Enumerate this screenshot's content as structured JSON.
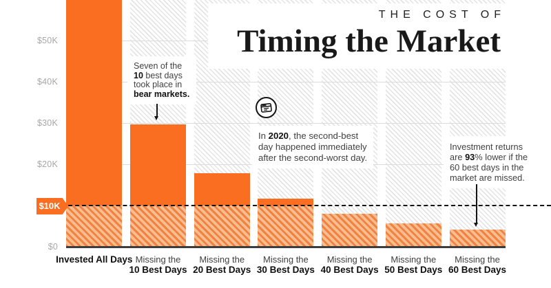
{
  "title": {
    "kicker": "THE COST OF",
    "main": "Timing the Market"
  },
  "chart_data": {
    "type": "bar",
    "title": "The Cost of Timing the Market",
    "categories": [
      [
        "Invested All Days"
      ],
      [
        "Missing the",
        "10 Best Days"
      ],
      [
        "Missing the",
        "20 Best Days"
      ],
      [
        "Missing the",
        "30 Best Days"
      ],
      [
        "Missing the",
        "40 Best Days"
      ],
      [
        "Missing the",
        "50 Best Days"
      ],
      [
        "Missing the",
        "60 Best Days"
      ]
    ],
    "values": [
      64800,
      29700,
      17800,
      11700,
      8000,
      5700,
      4200
    ],
    "y_ticks": [
      {
        "label": "$50K",
        "value": 50000
      },
      {
        "label": "$40K",
        "value": 40000
      },
      {
        "label": "$30K",
        "value": 30000
      },
      {
        "label": "$20K",
        "value": 20000
      },
      {
        "label": "$10K",
        "value": 10000
      },
      {
        "label": "$0",
        "value": 0
      }
    ],
    "reference_line": {
      "label": "$10K",
      "value": 10000,
      "style": "dashed"
    },
    "y_axis_visible_max": 50000,
    "first_bar_clipped_at_top": true,
    "grid": true,
    "bar_color": "#f96e20",
    "below_reference_fill": "hatched-orange",
    "background_columns": "hatched-gray"
  },
  "annotations": {
    "bear_markets": {
      "lines": [
        [
          {
            "t": "Seven of the"
          }
        ],
        [
          {
            "t": "10",
            "b": true
          },
          {
            "t": " best days"
          }
        ],
        [
          {
            "t": "took place in"
          }
        ],
        [
          {
            "t": "bear markets.",
            "b": true
          }
        ]
      ]
    },
    "year_2020": {
      "lines": [
        [
          {
            "t": "In "
          },
          {
            "t": "2020",
            "b": true
          },
          {
            "t": ", the second-best"
          }
        ],
        [
          {
            "t": "day happened immediately"
          }
        ],
        [
          {
            "t": "after the second-worst day."
          }
        ]
      ]
    },
    "returns_93": {
      "lines": [
        [
          {
            "t": "Investment returns"
          }
        ],
        [
          {
            "t": "are "
          },
          {
            "t": "93",
            "b": true
          },
          {
            "t": "% lower if the"
          }
        ],
        [
          {
            "t": "60 best days in the"
          }
        ],
        [
          {
            "t": "market are missed."
          }
        ]
      ]
    }
  },
  "icons": {
    "calendar": "calendar-icon"
  },
  "colors": {
    "bar_orange": "#f96e20",
    "bar_hatch_light": "#f9bd92",
    "bar_hatch_dark": "#f2823f",
    "bg_hatch_gray": "#e4e4e4",
    "text_dark": "#101010",
    "text_gray": "#a7a7a7",
    "tag_text": "#ffffff"
  }
}
